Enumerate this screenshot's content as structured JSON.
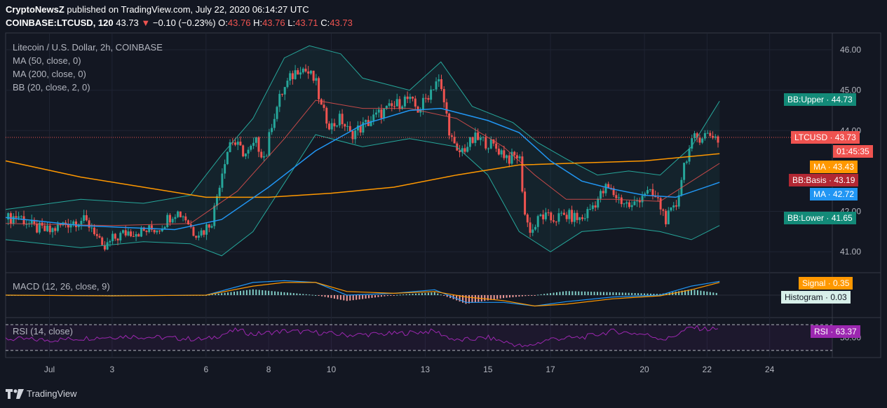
{
  "header": {
    "publisher": "CryptoNewsZ",
    "published_text": "published on TradingView.com, July 22, 2020 06:14:27 UTC",
    "symbol": "COINBASE:LTCUSD, 120",
    "last": "43.73",
    "arrow": "▼",
    "change": "−0.10 (−0.23%)",
    "o_label": "O:",
    "o_val": "43.76",
    "h_label": "H:",
    "h_val": "43.76",
    "l_label": "L:",
    "l_val": "43.71",
    "c_label": "C:",
    "c_val": "43.73"
  },
  "legend": {
    "title": "Litecoin / U.S. Dollar, 2h, COINBASE",
    "ma50": "MA (50, close, 0)",
    "ma200": "MA (200, close, 0)",
    "bb": "BB (20, close, 2, 0)",
    "macd": "MACD (12, 26, close, 9)",
    "rsi": "RSI (14, close)"
  },
  "tags": {
    "bb_upper": "BB:Upper · 44.73",
    "ltcusd": "LTCUSD · 43.73",
    "countdown": "01:45:35",
    "ma1": "MA · 43.43",
    "bb_basis": "BB:Basis · 43.19",
    "ma2": "MA · 42.72",
    "bb_lower": "BB:Lower · 41.65",
    "signal": "Signal · 0.35",
    "histogram": "Histogram · 0.03",
    "rsi": "RSI · 63.37"
  },
  "footer": {
    "brand": "TradingView"
  },
  "colors": {
    "background": "#131722",
    "up": "#26a69a",
    "down": "#ef5350",
    "ma50": "#2196f3",
    "ma200": "#ff9800",
    "bb": "#26a69a",
    "bb_basis": "#ef5350",
    "rsi": "#9c27b0",
    "macd": "#2196f3",
    "signal": "#ff9800"
  },
  "chart_data": {
    "type": "candlestick",
    "price_axis": {
      "ticks": [
        "46.00",
        "45.00",
        "44.00",
        "42.00",
        "41.00"
      ],
      "tick_values": [
        46,
        45,
        44,
        42,
        41
      ],
      "ylim": [
        40.5,
        46.4
      ]
    },
    "x_ticks": [
      "Jul",
      "3",
      "6",
      "8",
      "10",
      "13",
      "15",
      "17",
      "20",
      "22",
      "24"
    ],
    "x_tick_days": [
      1,
      3,
      6,
      8,
      10,
      13,
      15,
      17,
      20,
      22,
      24
    ],
    "xlim_days": [
      -0.4,
      26.0
    ],
    "close_path": [
      [
        -0.4,
        41.8
      ],
      [
        0.0,
        41.9
      ],
      [
        0.5,
        41.6
      ],
      [
        1.0,
        41.5
      ],
      [
        1.5,
        41.7
      ],
      [
        2.0,
        41.8
      ],
      [
        2.4,
        41.6
      ],
      [
        2.7,
        41.0
      ],
      [
        3.0,
        41.3
      ],
      [
        3.5,
        41.5
      ],
      [
        4.0,
        41.5
      ],
      [
        4.5,
        41.6
      ],
      [
        5.0,
        42.0
      ],
      [
        5.3,
        41.9
      ],
      [
        5.6,
        41.5
      ],
      [
        5.9,
        41.5
      ],
      [
        6.2,
        41.8
      ],
      [
        6.4,
        42.6
      ],
      [
        6.6,
        43.3
      ],
      [
        6.8,
        43.8
      ],
      [
        7.0,
        43.6
      ],
      [
        7.3,
        43.4
      ],
      [
        7.6,
        43.7
      ],
      [
        7.9,
        43.3
      ],
      [
        8.1,
        44.2
      ],
      [
        8.4,
        44.9
      ],
      [
        8.7,
        45.3
      ],
      [
        9.0,
        45.6
      ],
      [
        9.3,
        45.4
      ],
      [
        9.5,
        45.2
      ],
      [
        9.7,
        44.5
      ],
      [
        10.0,
        44.1
      ],
      [
        10.3,
        44.3
      ],
      [
        10.6,
        43.9
      ],
      [
        11.0,
        44.1
      ],
      [
        11.5,
        44.4
      ],
      [
        12.0,
        44.6
      ],
      [
        12.4,
        44.8
      ],
      [
        12.8,
        44.5
      ],
      [
        13.1,
        44.9
      ],
      [
        13.4,
        45.3
      ],
      [
        13.6,
        44.7
      ],
      [
        13.8,
        43.9
      ],
      [
        14.0,
        43.4
      ],
      [
        14.3,
        43.6
      ],
      [
        14.6,
        43.8
      ],
      [
        15.0,
        43.7
      ],
      [
        15.4,
        43.5
      ],
      [
        15.7,
        43.3
      ],
      [
        16.0,
        43.4
      ],
      [
        16.2,
        41.8
      ],
      [
        16.4,
        41.5
      ],
      [
        16.7,
        41.9
      ],
      [
        17.0,
        41.8
      ],
      [
        17.5,
        41.9
      ],
      [
        18.0,
        41.8
      ],
      [
        18.4,
        42.2
      ],
      [
        18.8,
        42.6
      ],
      [
        19.2,
        42.3
      ],
      [
        19.6,
        42.1
      ],
      [
        20.0,
        42.5
      ],
      [
        20.4,
        42.3
      ],
      [
        20.7,
        41.8
      ],
      [
        21.0,
        42.1
      ],
      [
        21.3,
        43.3
      ],
      [
        21.6,
        43.8
      ],
      [
        21.9,
        43.9
      ],
      [
        22.2,
        43.9
      ],
      [
        22.4,
        43.73
      ]
    ],
    "ma50": [
      [
        -0.4,
        41.85
      ],
      [
        2.0,
        41.65
      ],
      [
        5.0,
        41.55
      ],
      [
        6.5,
        41.8
      ],
      [
        8.0,
        42.6
      ],
      [
        9.5,
        43.5
      ],
      [
        11.0,
        44.15
      ],
      [
        12.5,
        44.5
      ],
      [
        13.5,
        44.55
      ],
      [
        15.0,
        44.25
      ],
      [
        16.0,
        43.95
      ],
      [
        17.0,
        43.25
      ],
      [
        18.0,
        42.75
      ],
      [
        19.0,
        42.55
      ],
      [
        20.0,
        42.4
      ],
      [
        21.0,
        42.35
      ],
      [
        22.4,
        42.72
      ]
    ],
    "ma200": [
      [
        -0.4,
        43.25
      ],
      [
        2.0,
        42.85
      ],
      [
        4.0,
        42.6
      ],
      [
        6.0,
        42.35
      ],
      [
        8.0,
        42.35
      ],
      [
        10.0,
        42.45
      ],
      [
        12.0,
        42.6
      ],
      [
        14.0,
        42.9
      ],
      [
        16.0,
        43.15
      ],
      [
        18.0,
        43.2
      ],
      [
        20.0,
        43.25
      ],
      [
        22.4,
        43.43
      ]
    ],
    "bb_upper": [
      [
        -0.4,
        42.05
      ],
      [
        2.0,
        42.3
      ],
      [
        4.0,
        42.2
      ],
      [
        5.5,
        42.4
      ],
      [
        6.5,
        43.4
      ],
      [
        7.5,
        44.3
      ],
      [
        8.5,
        45.8
      ],
      [
        9.3,
        46.1
      ],
      [
        10.3,
        45.9
      ],
      [
        11.0,
        45.3
      ],
      [
        12.5,
        45.0
      ],
      [
        13.5,
        45.7
      ],
      [
        14.5,
        44.6
      ],
      [
        15.8,
        44.2
      ],
      [
        16.6,
        43.7
      ],
      [
        17.5,
        43.3
      ],
      [
        18.5,
        42.9
      ],
      [
        19.5,
        43.0
      ],
      [
        20.5,
        42.9
      ],
      [
        21.5,
        43.6
      ],
      [
        22.4,
        44.73
      ]
    ],
    "bb_basis": [
      [
        -0.4,
        41.7
      ],
      [
        3.0,
        41.65
      ],
      [
        5.5,
        41.7
      ],
      [
        7.0,
        42.5
      ],
      [
        8.5,
        43.8
      ],
      [
        9.5,
        44.75
      ],
      [
        11.0,
        44.55
      ],
      [
        12.5,
        44.55
      ],
      [
        14.0,
        44.3
      ],
      [
        15.5,
        43.6
      ],
      [
        16.5,
        42.9
      ],
      [
        17.5,
        42.3
      ],
      [
        19.0,
        42.3
      ],
      [
        20.5,
        42.25
      ],
      [
        22.4,
        43.19
      ]
    ],
    "bb_lower": [
      [
        -0.4,
        41.3
      ],
      [
        2.0,
        41.1
      ],
      [
        4.0,
        41.25
      ],
      [
        5.5,
        41.2
      ],
      [
        6.5,
        40.9
      ],
      [
        7.5,
        41.5
      ],
      [
        8.5,
        42.7
      ],
      [
        9.5,
        43.9
      ],
      [
        11.0,
        43.6
      ],
      [
        12.5,
        43.8
      ],
      [
        14.0,
        43.6
      ],
      [
        15.0,
        42.9
      ],
      [
        16.0,
        41.5
      ],
      [
        17.0,
        41.0
      ],
      [
        18.0,
        41.5
      ],
      [
        19.5,
        41.6
      ],
      [
        20.5,
        41.5
      ],
      [
        21.5,
        41.3
      ],
      [
        22.4,
        41.65
      ]
    ],
    "macd": {
      "ylim": [
        -0.6,
        0.6
      ],
      "macd_line": [
        [
          -0.4,
          0.0
        ],
        [
          3.0,
          -0.02
        ],
        [
          6.0,
          0.0
        ],
        [
          7.5,
          0.35
        ],
        [
          8.5,
          0.4
        ],
        [
          9.5,
          0.35
        ],
        [
          10.5,
          0.0
        ],
        [
          12.0,
          0.05
        ],
        [
          13.3,
          0.15
        ],
        [
          14.3,
          -0.2
        ],
        [
          15.5,
          -0.2
        ],
        [
          16.5,
          -0.3
        ],
        [
          17.5,
          -0.18
        ],
        [
          19.0,
          -0.05
        ],
        [
          20.5,
          0.0
        ],
        [
          21.5,
          0.25
        ],
        [
          22.4,
          0.38
        ]
      ],
      "signal_line": [
        [
          -0.4,
          0.0
        ],
        [
          3.0,
          -0.02
        ],
        [
          6.0,
          0.0
        ],
        [
          7.5,
          0.25
        ],
        [
          8.5,
          0.35
        ],
        [
          9.5,
          0.35
        ],
        [
          10.5,
          0.1
        ],
        [
          12.0,
          0.05
        ],
        [
          13.3,
          0.1
        ],
        [
          14.3,
          -0.05
        ],
        [
          15.5,
          -0.15
        ],
        [
          16.5,
          -0.3
        ],
        [
          17.5,
          -0.25
        ],
        [
          19.0,
          -0.1
        ],
        [
          20.5,
          -0.02
        ],
        [
          21.5,
          0.15
        ],
        [
          22.4,
          0.35
        ]
      ]
    },
    "rsi": {
      "ylim": [
        20,
        80
      ],
      "bands": [
        70,
        30
      ],
      "tick": "50.00",
      "series": [
        [
          -0.4,
          48
        ],
        [
          1.0,
          46
        ],
        [
          2.5,
          50
        ],
        [
          3.5,
          52
        ],
        [
          5.0,
          49
        ],
        [
          6.0,
          47
        ],
        [
          7.0,
          62
        ],
        [
          7.5,
          55
        ],
        [
          8.5,
          60
        ],
        [
          9.5,
          58
        ],
        [
          10.5,
          54
        ],
        [
          12.0,
          56
        ],
        [
          13.3,
          60
        ],
        [
          14.0,
          45
        ],
        [
          15.0,
          50
        ],
        [
          16.2,
          35
        ],
        [
          17.0,
          48
        ],
        [
          18.0,
          50
        ],
        [
          19.0,
          60
        ],
        [
          20.0,
          55
        ],
        [
          20.7,
          47
        ],
        [
          21.5,
          66
        ],
        [
          22.0,
          63
        ],
        [
          22.4,
          63.37
        ]
      ]
    }
  }
}
